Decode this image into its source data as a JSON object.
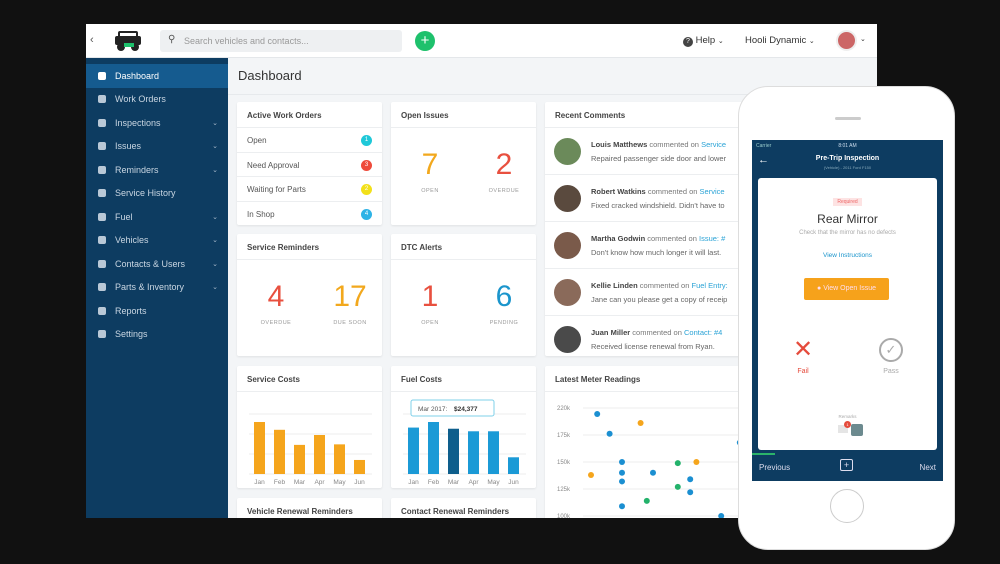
{
  "topbar": {
    "search_placeholder": "Search vehicles and contacts...",
    "help": "Help",
    "account": "Hooli Dynamic"
  },
  "sidebar": {
    "items": [
      {
        "label": "Dashboard",
        "active": true,
        "chevron": false
      },
      {
        "label": "Work Orders",
        "chevron": false
      },
      {
        "label": "Inspections",
        "chevron": true
      },
      {
        "label": "Issues",
        "chevron": true
      },
      {
        "label": "Reminders",
        "chevron": true
      },
      {
        "label": "Service History",
        "chevron": false
      },
      {
        "label": "Fuel",
        "chevron": true
      },
      {
        "label": "Vehicles",
        "chevron": true
      },
      {
        "label": "Contacts & Users",
        "chevron": true
      },
      {
        "label": "Parts & Inventory",
        "chevron": true
      },
      {
        "label": "Reports",
        "chevron": false
      },
      {
        "label": "Settings",
        "chevron": false
      }
    ]
  },
  "page_title": "Dashboard",
  "active_work_orders": {
    "title": "Active Work Orders",
    "rows": [
      {
        "label": "Open",
        "count": "1",
        "color": "#1fc8d8"
      },
      {
        "label": "Need Approval",
        "count": "3",
        "color": "#ee4b3b"
      },
      {
        "label": "Waiting for Parts",
        "count": "2",
        "color": "#f2e01a"
      },
      {
        "label": "In Shop",
        "count": "4",
        "color": "#2eb3e6"
      }
    ]
  },
  "open_issues": {
    "title": "Open Issues",
    "a": {
      "value": "7",
      "label": "OPEN",
      "color": "#f2a81d"
    },
    "b": {
      "value": "2",
      "label": "OVERDUE",
      "color": "#e8503f"
    }
  },
  "service_reminders": {
    "title": "Service Reminders",
    "a": {
      "value": "4",
      "label": "OVERDUE",
      "color": "#e8503f"
    },
    "b": {
      "value": "17",
      "label": "DUE SOON",
      "color": "#f2a81d"
    }
  },
  "dtc_alerts": {
    "title": "DTC Alerts",
    "a": {
      "value": "1",
      "label": "OPEN",
      "color": "#e8503f"
    },
    "b": {
      "value": "6",
      "label": "PENDING",
      "color": "#1b95cc"
    }
  },
  "recent_comments": {
    "title": "Recent Comments",
    "items": [
      {
        "name": "Louis Matthews",
        "verb": "commented on",
        "link": "Service",
        "text": "Repaired passenger side door and lower"
      },
      {
        "name": "Robert Watkins",
        "verb": "commented on",
        "link": "Service",
        "text": "Fixed cracked windshield. Didn't have to"
      },
      {
        "name": "Martha Godwin",
        "verb": "commented on",
        "link": "Issue: #",
        "text": "Don't know how much longer it will last."
      },
      {
        "name": "Kellie Linden",
        "verb": "commented on",
        "link": "Fuel Entry:",
        "text": "Jane can you please get a copy of receip"
      },
      {
        "name": "Juan Miller",
        "verb": "commented on",
        "link": "Contact: #4",
        "text": "Received license renewal from Ryan."
      }
    ]
  },
  "bottom_cards": {
    "vehicle_renewal": "Vehicle Renewal Reminders",
    "contact_renewal": "Contact Renewal Reminders"
  },
  "chart_data": [
    {
      "type": "bar",
      "title": "Service Costs",
      "categories": [
        "Jan",
        "Feb",
        "Mar",
        "Apr",
        "May",
        "Jun"
      ],
      "values": [
        100,
        85,
        56,
        75,
        57,
        27
      ],
      "color": "#f5a51c"
    },
    {
      "type": "bar",
      "title": "Fuel Costs",
      "categories": [
        "Jan",
        "Feb",
        "Mar",
        "Apr",
        "May",
        "Jun"
      ],
      "values": [
        25000,
        28000,
        24377,
        23000,
        23000,
        9000
      ],
      "color": "#1b9ad6",
      "highlight_color": "#0e5e8c",
      "highlight_index": 2,
      "tooltip": {
        "label": "Mar 2017:",
        "value": "$24,377"
      }
    },
    {
      "type": "scatter",
      "title": "Latest Meter Readings",
      "ytick_labels": [
        "220k",
        "175k",
        "150k",
        "125k",
        "100k"
      ],
      "ytick_values": [
        220000,
        175000,
        150000,
        125000,
        100000
      ],
      "points": [
        {
          "x": 1,
          "y": 210000,
          "c": "#1b8fd1"
        },
        {
          "x": 8,
          "y": 195000,
          "c": "#f5a51c"
        },
        {
          "x": 3,
          "y": 177000,
          "c": "#1b8fd1"
        },
        {
          "x": 5,
          "y": 150000,
          "c": "#1b8fd1"
        },
        {
          "x": 14,
          "y": 149000,
          "c": "#23b26b"
        },
        {
          "x": 17,
          "y": 150000,
          "c": "#f5a51c"
        },
        {
          "x": 0,
          "y": 138000,
          "c": "#f5a51c"
        },
        {
          "x": 5,
          "y": 140000,
          "c": "#1b8fd1"
        },
        {
          "x": 10,
          "y": 140000,
          "c": "#1b8fd1"
        },
        {
          "x": 5,
          "y": 132000,
          "c": "#1b8fd1"
        },
        {
          "x": 14,
          "y": 127000,
          "c": "#23b26b"
        },
        {
          "x": 16,
          "y": 134000,
          "c": "#1b8fd1"
        },
        {
          "x": 16,
          "y": 122000,
          "c": "#1b8fd1"
        },
        {
          "x": 9,
          "y": 114000,
          "c": "#23b26b"
        },
        {
          "x": 5,
          "y": 109000,
          "c": "#1b8fd1"
        },
        {
          "x": 21,
          "y": 100000,
          "c": "#1b8fd1"
        },
        {
          "x": 24,
          "y": 168000,
          "c": "#1b8fd1"
        }
      ]
    }
  ],
  "phone": {
    "carrier": "Carrier",
    "time": "8:01 AM",
    "title": "Pre-Trip Inspection",
    "subtitle": "(Vehicle) - 2011 Ford F150",
    "required": "Required",
    "item": "Rear Mirror",
    "desc": "Check that the mirror has no defects",
    "instructions": "View Instructions",
    "open_issue": "View Open Issue",
    "fail": "Fail",
    "pass": "Pass",
    "remarks": "Remarks",
    "remarks_badge": "1",
    "previous": "Previous",
    "next": "Next",
    "progress": 0.12
  }
}
